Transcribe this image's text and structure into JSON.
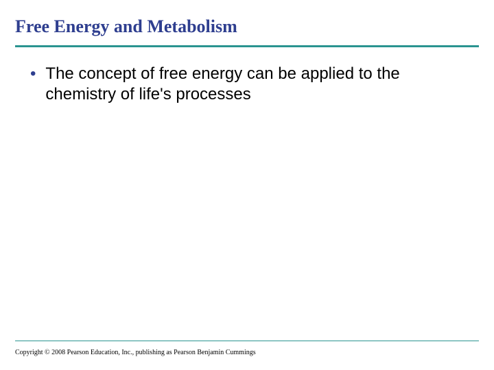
{
  "slide": {
    "title": "Free Energy and Metabolism",
    "title_color": "#2e3e8f",
    "title_fontsize": 26,
    "bullets": [
      {
        "text": "The concept of free energy can be applied to the chemistry of life's processes"
      }
    ],
    "bullet_color": "#2e3e8f",
    "bullet_text_color": "#000000",
    "bullet_fontsize": 24,
    "divider_color_top": "#2a9490",
    "divider_color_bottom": "#2a9490",
    "divider_top_width": 3,
    "divider_bottom_width": 1,
    "background_color": "#ffffff",
    "footer": "Copyright © 2008 Pearson Education, Inc., publishing as Pearson Benjamin Cummings",
    "footer_fontsize": 10
  }
}
